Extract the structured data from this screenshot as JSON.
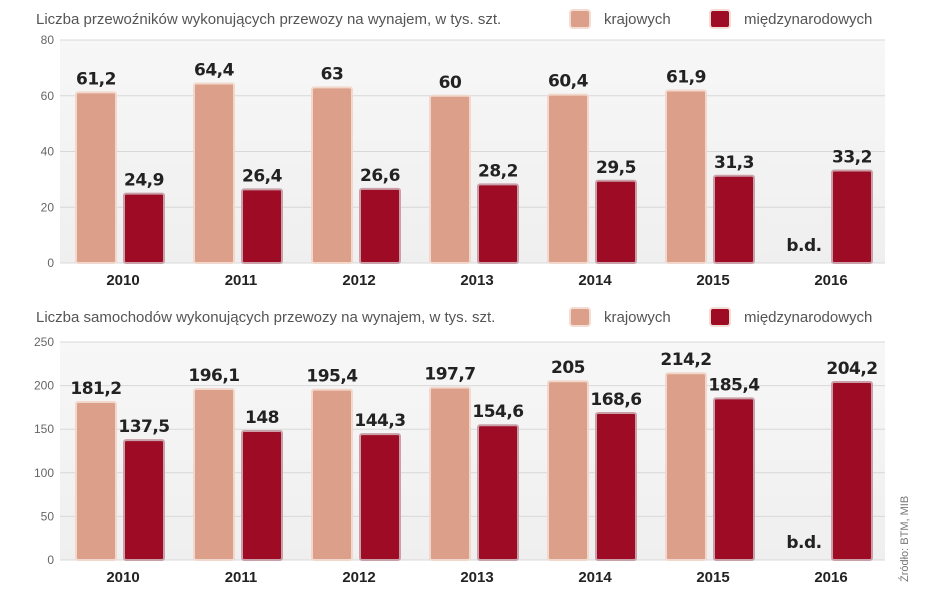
{
  "colors": {
    "domestic": "#dca08a",
    "international": "#9e0b25",
    "plot_bg": "#efefef"
  },
  "source": "Źródło: BTM, MIB",
  "chart_data": [
    {
      "type": "bar",
      "title": "Liczba przewoźników wykonujących przewozy na wynajem, w tys. szt.",
      "categories": [
        "2010",
        "2011",
        "2012",
        "2013",
        "2014",
        "2015",
        "2016"
      ],
      "series": [
        {
          "name": "krajowych",
          "values": [
            61.2,
            64.4,
            63,
            60,
            60.4,
            61.9,
            null
          ],
          "labels": [
            "61,2",
            "64,4",
            "63",
            "60",
            "60,4",
            "61,9",
            "b.d."
          ]
        },
        {
          "name": "międzynarodowych",
          "values": [
            24.9,
            26.4,
            26.6,
            28.2,
            29.5,
            31.3,
            33.2
          ],
          "labels": [
            "24,9",
            "26,4",
            "26,6",
            "28,2",
            "29,5",
            "31,3",
            "33,2"
          ]
        }
      ],
      "ylim": [
        0,
        80
      ],
      "yticks": [
        0,
        20,
        40,
        60,
        80
      ],
      "grid": true,
      "legend": "top-right"
    },
    {
      "type": "bar",
      "title": "Liczba samochodów wykonujących przewozy na wynajem, w tys. szt.",
      "categories": [
        "2010",
        "2011",
        "2012",
        "2013",
        "2014",
        "2015",
        "2016"
      ],
      "series": [
        {
          "name": "krajowych",
          "values": [
            181.2,
            196.1,
            195.4,
            197.7,
            205,
            214.2,
            null
          ],
          "labels": [
            "181,2",
            "196,1",
            "195,4",
            "197,7",
            "205",
            "214,2",
            "b.d."
          ]
        },
        {
          "name": "międzynarodowych",
          "values": [
            137.5,
            148,
            144.3,
            154.6,
            168.6,
            185.4,
            204.2
          ],
          "labels": [
            "137,5",
            "148",
            "144,3",
            "154,6",
            "168,6",
            "185,4",
            "204,2"
          ]
        }
      ],
      "ylim": [
        0,
        250
      ],
      "yticks": [
        0,
        50,
        100,
        150,
        200,
        250
      ],
      "grid": true,
      "legend": "top-right"
    }
  ]
}
